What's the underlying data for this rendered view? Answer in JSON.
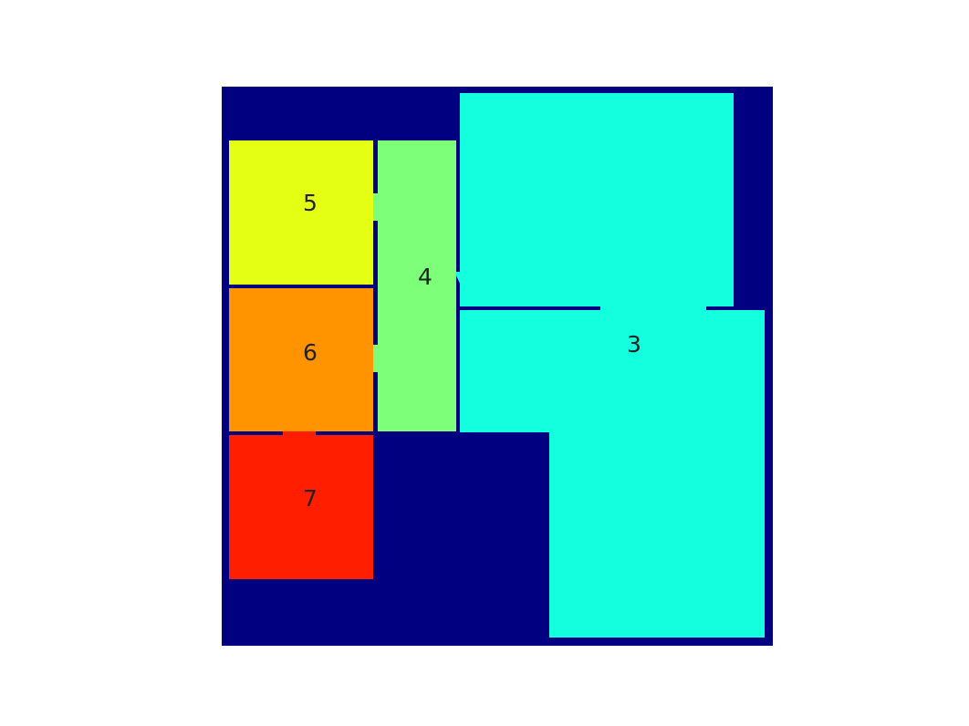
{
  "colors": {
    "background": "#ffffff",
    "frame": "#000080",
    "room_3": "#13ffdd",
    "room_4": "#7dff7a",
    "room_5": "#e4ff13",
    "room_6": "#ff9400",
    "room_7": "#ff1e00"
  },
  "rooms": [
    {
      "id": "room-3",
      "label": "3",
      "color_key": "room_3"
    },
    {
      "id": "room-4",
      "label": "4",
      "color_key": "room_4"
    },
    {
      "id": "room-5",
      "label": "5",
      "color_key": "room_5"
    },
    {
      "id": "room-6",
      "label": "6",
      "color_key": "room_6"
    },
    {
      "id": "room-7",
      "label": "7",
      "color_key": "room_7"
    }
  ]
}
